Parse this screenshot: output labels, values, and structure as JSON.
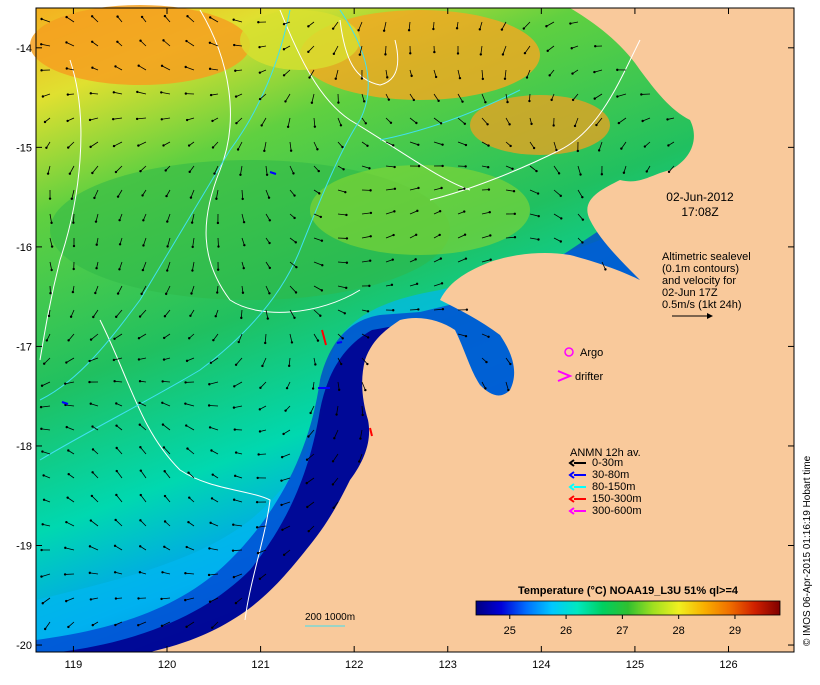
{
  "map": {
    "lat_ticks": [
      {
        "label": "-14",
        "value": -14
      },
      {
        "label": "-15",
        "value": -15
      },
      {
        "label": "-16",
        "value": -16
      },
      {
        "label": "-17",
        "value": -17
      },
      {
        "label": "-18",
        "value": -18
      },
      {
        "label": "-19",
        "value": -19
      },
      {
        "label": "-20",
        "value": -20
      }
    ],
    "lon_ticks": [
      {
        "label": "119",
        "value": 119
      },
      {
        "label": "120",
        "value": 120
      },
      {
        "label": "121",
        "value": 121
      },
      {
        "label": "122",
        "value": 122
      },
      {
        "label": "123",
        "value": 123
      },
      {
        "label": "124",
        "value": 124
      },
      {
        "label": "125",
        "value": 125
      },
      {
        "label": "126",
        "value": 126
      }
    ],
    "lon_range": [
      118.6,
      126.7
    ],
    "lat_range": [
      -20.07,
      -13.6
    ],
    "land_color": "#f9c99b",
    "date": "02-Jun-2012",
    "time": "17:08Z",
    "altimetry_lines": [
      "Altimetric sealevel",
      "(0.1m contours)",
      "and velocity for",
      "02-Jun 17Z",
      "0.5m/s (1kt 24h)"
    ],
    "argo_label": "Argo",
    "drifter_label": "drifter",
    "argo_color": "#ff00ff",
    "drifter_color": "#ff00ff",
    "anmn": {
      "title": "ANMN 12h av.",
      "items": [
        {
          "label": "0-30m",
          "color": "#000000"
        },
        {
          "label": "30-80m",
          "color": "#0000ff"
        },
        {
          "label": "80-150m",
          "color": "#00ffff"
        },
        {
          "label": "150-300m",
          "color": "#ff0000"
        },
        {
          "label": "300-600m",
          "color": "#ff00ff"
        }
      ]
    },
    "depth_label": "200  1000m",
    "credit": "© IMOS 06-Apr-2015 01:16:19 Hobart time"
  },
  "colorbar": {
    "title": "Temperature (°C) NOAA19_L3U 51% ql>=4",
    "min": 24.4,
    "max": 29.8,
    "ticks": [
      {
        "label": "25",
        "value": 25
      },
      {
        "label": "26",
        "value": 26
      },
      {
        "label": "27",
        "value": 27
      },
      {
        "label": "28",
        "value": 28
      },
      {
        "label": "29",
        "value": 29
      }
    ],
    "colors": [
      "#000080",
      "#0000d8",
      "#0070ff",
      "#00c8ff",
      "#00e8c0",
      "#00d060",
      "#30c030",
      "#a0e020",
      "#f0f020",
      "#f8b000",
      "#f07000",
      "#d02000",
      "#800000"
    ]
  }
}
